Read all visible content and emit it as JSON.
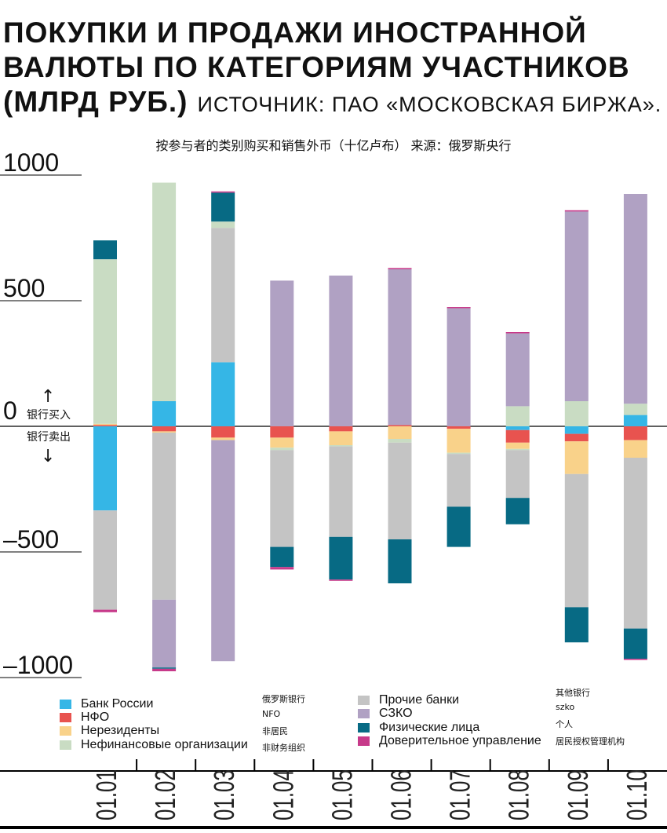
{
  "title": {
    "main": "ПОКУПКИ И ПРОДАЖИ ИНОСТРАННОЙ ВАЛЮТЫ ПО КАТЕГОРИЯМ УЧАСТНИКОВ (МЛРД РУБ.)",
    "source": "ИСТОЧНИК: ПАО «МОСКОВСКАЯ БИРЖА»."
  },
  "subtitle": "按参与者的类别购买和销售外币（十亿卢布）   来源：俄罗斯央行",
  "annotations": {
    "buy": "银行买入",
    "sell": "银行卖出"
  },
  "colors": {
    "bank_russia": "#35b6e6",
    "nfo": "#e8534f",
    "nonresidents": "#f9d28a",
    "nonfinancial": "#c9dcc3",
    "other_banks": "#c4c4c4",
    "szko": "#b0a1c3",
    "individuals": "#076a84",
    "trust": "#c73a8a"
  },
  "legend": [
    {
      "key": "bank_russia",
      "label": "Банк России",
      "cn": "俄罗斯银行"
    },
    {
      "key": "nfo",
      "label": "НФО",
      "cn": "NFO"
    },
    {
      "key": "nonresidents",
      "label": "Нерезиденты",
      "cn": "非居民"
    },
    {
      "key": "nonfinancial",
      "label": "Нефинансовые организации",
      "cn": "非财务组织"
    },
    {
      "key": "other_banks",
      "label": "Прочие банки",
      "cn": "其他银行"
    },
    {
      "key": "szko",
      "label": "СЗКО",
      "cn": "szko"
    },
    {
      "key": "individuals",
      "label": "Физические лица",
      "cn": "个人"
    },
    {
      "key": "trust",
      "label": "Доверительное управление",
      "cn": "居民授权管理机构"
    }
  ],
  "chart_data": {
    "type": "bar",
    "stacked": true,
    "categories": [
      "01.01",
      "01.02",
      "01.03",
      "01.04",
      "01.05",
      "01.06",
      "01.07",
      "01.08",
      "01.09",
      "01.10"
    ],
    "y_ticks": [
      1000,
      500,
      0,
      -500,
      -1000
    ],
    "y_tick_labels": [
      "1000",
      "500",
      "0",
      "–500",
      "–1000"
    ],
    "ylim": [
      -1050,
      1100
    ],
    "series_order_positive": [
      "nfo",
      "nonresidents",
      "bank_russia",
      "other_banks",
      "nonfinancial",
      "szko",
      "individuals",
      "trust"
    ],
    "series_order_negative": [
      "bank_russia",
      "nfo",
      "nonresidents",
      "nonfinancial",
      "other_banks",
      "szko",
      "individuals",
      "trust"
    ],
    "series": [
      {
        "key": "bank_russia",
        "name": "Банк России",
        "positive": [
          0,
          100,
          255,
          0,
          0,
          0,
          0,
          0,
          0,
          45
        ],
        "negative": [
          -335,
          0,
          0,
          0,
          0,
          0,
          0,
          -15,
          -30,
          0
        ]
      },
      {
        "key": "nfo",
        "name": "НФО",
        "positive": [
          5,
          0,
          0,
          0,
          0,
          5,
          0,
          0,
          0,
          0
        ],
        "negative": [
          0,
          -20,
          -45,
          -45,
          -20,
          0,
          -10,
          -50,
          -30,
          -55
        ]
      },
      {
        "key": "nonresidents",
        "name": "Нерезиденты",
        "positive": [
          5,
          0,
          0,
          0,
          0,
          0,
          0,
          0,
          0,
          0
        ],
        "negative": [
          0,
          -5,
          -10,
          -40,
          -55,
          -50,
          -95,
          -25,
          -130,
          -70
        ]
      },
      {
        "key": "nonfinancial",
        "name": "Нефинансовые организации",
        "positive": [
          655,
          870,
          25,
          0,
          0,
          0,
          0,
          80,
          100,
          45
        ],
        "negative": [
          0,
          0,
          0,
          -10,
          -5,
          -15,
          -5,
          -5,
          0,
          0
        ]
      },
      {
        "key": "other_banks",
        "name": "Прочие банки",
        "positive": [
          0,
          0,
          535,
          0,
          0,
          0,
          0,
          0,
          0,
          0
        ],
        "negative": [
          -395,
          -665,
          0,
          -385,
          -360,
          -385,
          -210,
          -190,
          -530,
          -680
        ]
      },
      {
        "key": "szko",
        "name": "СЗКО",
        "positive": [
          0,
          0,
          0,
          580,
          600,
          620,
          470,
          290,
          755,
          835
        ],
        "negative": [
          0,
          -270,
          -880,
          0,
          0,
          0,
          0,
          0,
          0,
          0
        ]
      },
      {
        "key": "individuals",
        "name": "Физические лица",
        "positive": [
          75,
          0,
          115,
          0,
          0,
          0,
          0,
          0,
          0,
          0
        ],
        "negative": [
          0,
          -5,
          0,
          -80,
          -170,
          -175,
          -160,
          -105,
          -140,
          -120
        ]
      },
      {
        "key": "trust",
        "name": "Доверительное управление",
        "positive": [
          0,
          0,
          5,
          0,
          0,
          5,
          5,
          5,
          5,
          0
        ],
        "negative": [
          -10,
          -10,
          0,
          -10,
          -5,
          0,
          0,
          0,
          0,
          -5
        ]
      }
    ]
  }
}
